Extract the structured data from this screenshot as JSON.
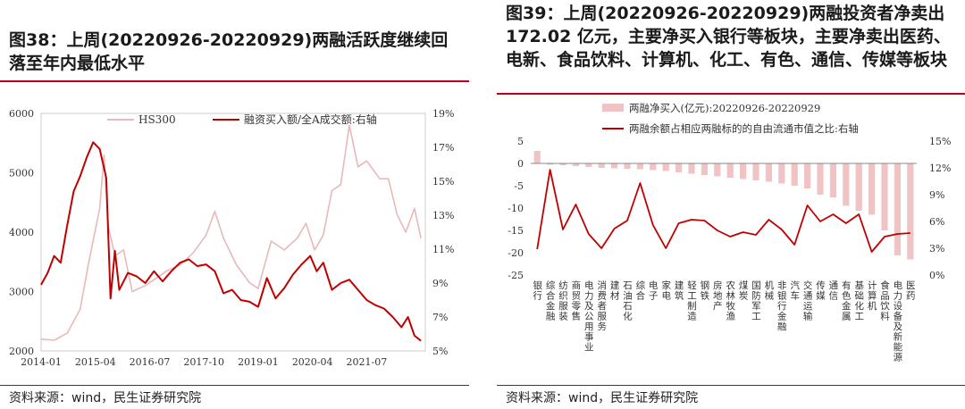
{
  "left": {
    "title": "图38：上周(20220926-20220929)两融活跃度继续回落至年内最低水平",
    "source": "资料来源：wind，民生证券研究院"
  },
  "right": {
    "title": "图39：上周(20220926-20220929)两融投资者净卖出 172.02 亿元，主要净买入银行等板块，主要净卖出医药、电新、食品饮料、计算机、化工、有色、通信、传媒等板块",
    "source": "资料来源：wind，民生证券研究院"
  },
  "chart_data": [
    {
      "type": "line",
      "legend_position": "top",
      "x_ticks": [
        "2014-01",
        "2015-04",
        "2016-07",
        "2017-10",
        "2019-01",
        "2020-04",
        "2021-07"
      ],
      "y_ticks_left": [
        "6000",
        "5000",
        "4000",
        "3000",
        "2000"
      ],
      "y_ticks_right": [
        "19%",
        "17%",
        "15%",
        "13%",
        "11%",
        "9%",
        "7%",
        "5%"
      ],
      "ylim_left": [
        2000,
        6000
      ],
      "ylim_right": [
        5,
        19
      ],
      "series": [
        {
          "name": "HS300",
          "axis": "left",
          "color": "#e9b8b8",
          "points": [
            [
              2014.0,
              2200
            ],
            [
              2014.3,
              2180
            ],
            [
              2014.6,
              2300
            ],
            [
              2014.9,
              2700
            ],
            [
              2015.1,
              3500
            ],
            [
              2015.35,
              4400
            ],
            [
              2015.45,
              5300
            ],
            [
              2015.55,
              4100
            ],
            [
              2015.7,
              3600
            ],
            [
              2015.9,
              3700
            ],
            [
              2016.1,
              3000
            ],
            [
              2016.4,
              3100
            ],
            [
              2016.6,
              3200
            ],
            [
              2016.9,
              3350
            ],
            [
              2017.2,
              3450
            ],
            [
              2017.5,
              3650
            ],
            [
              2017.8,
              3950
            ],
            [
              2018.0,
              4350
            ],
            [
              2018.2,
              3900
            ],
            [
              2018.5,
              3450
            ],
            [
              2018.8,
              3150
            ],
            [
              2019.0,
              3050
            ],
            [
              2019.3,
              3850
            ],
            [
              2019.6,
              3700
            ],
            [
              2019.9,
              3900
            ],
            [
              2020.1,
              4150
            ],
            [
              2020.3,
              3700
            ],
            [
              2020.5,
              3950
            ],
            [
              2020.7,
              4700
            ],
            [
              2020.9,
              4800
            ],
            [
              2021.1,
              5800
            ],
            [
              2021.3,
              5100
            ],
            [
              2021.5,
              5200
            ],
            [
              2021.8,
              4900
            ],
            [
              2022.0,
              4900
            ],
            [
              2022.2,
              4300
            ],
            [
              2022.4,
              4000
            ],
            [
              2022.6,
              4400
            ],
            [
              2022.75,
              3900
            ]
          ]
        },
        {
          "name": "融资买入额/全A成交额:右轴",
          "axis": "right",
          "color": "#c00000",
          "points": [
            [
              2014.0,
              8.9
            ],
            [
              2014.15,
              9.6
            ],
            [
              2014.3,
              10.6
            ],
            [
              2014.45,
              10.2
            ],
            [
              2014.6,
              12.4
            ],
            [
              2014.75,
              14.4
            ],
            [
              2014.9,
              15.3
            ],
            [
              2015.05,
              16.4
            ],
            [
              2015.2,
              17.3
            ],
            [
              2015.35,
              16.9
            ],
            [
              2015.5,
              15.2
            ],
            [
              2015.6,
              8.1
            ],
            [
              2015.7,
              10.9
            ],
            [
              2015.8,
              8.6
            ],
            [
              2016.0,
              9.6
            ],
            [
              2016.2,
              9.4
            ],
            [
              2016.4,
              9.0
            ],
            [
              2016.6,
              9.7
            ],
            [
              2016.8,
              9.1
            ],
            [
              2017.0,
              9.7
            ],
            [
              2017.2,
              10.2
            ],
            [
              2017.4,
              10.4
            ],
            [
              2017.6,
              10.0
            ],
            [
              2017.8,
              10.1
            ],
            [
              2018.0,
              9.7
            ],
            [
              2018.2,
              8.4
            ],
            [
              2018.4,
              8.6
            ],
            [
              2018.6,
              8.0
            ],
            [
              2018.8,
              7.9
            ],
            [
              2019.0,
              7.6
            ],
            [
              2019.2,
              9.3
            ],
            [
              2019.4,
              8.1
            ],
            [
              2019.6,
              8.7
            ],
            [
              2019.8,
              9.5
            ],
            [
              2020.0,
              10.1
            ],
            [
              2020.2,
              10.6
            ],
            [
              2020.35,
              9.7
            ],
            [
              2020.5,
              10.2
            ],
            [
              2020.7,
              8.6
            ],
            [
              2020.9,
              9.0
            ],
            [
              2021.1,
              9.2
            ],
            [
              2021.3,
              8.6
            ],
            [
              2021.5,
              8.0
            ],
            [
              2021.7,
              7.7
            ],
            [
              2021.9,
              7.5
            ],
            [
              2022.1,
              7.0
            ],
            [
              2022.3,
              6.4
            ],
            [
              2022.45,
              7.0
            ],
            [
              2022.6,
              5.9
            ],
            [
              2022.75,
              5.6
            ]
          ]
        }
      ]
    },
    {
      "type": "bar",
      "legend_position": "top",
      "categories": [
        "银行",
        "综合金融",
        "纺织服装",
        "商贸零售",
        "电力及公用事业",
        "消费者服务",
        "建材",
        "石油石化",
        "综合",
        "电子",
        "家电",
        "建筑",
        "轻工制造",
        "钢铁",
        "房地产",
        "农林牧渔",
        "煤炭",
        "国防军工",
        "机械",
        "非银行金融",
        "汽车",
        "交通运输",
        "传媒",
        "通信",
        "有色金属",
        "基础化工",
        "计算机",
        "食品饮料",
        "电力设备及新能源",
        "医药"
      ],
      "y_ticks_left": [
        "5",
        "0",
        "-5",
        "-10",
        "-15",
        "-20",
        "-25"
      ],
      "y_ticks_right": [
        "15%",
        "12%",
        "9%",
        "6%",
        "3%",
        "0%"
      ],
      "ylim_left": [
        -25,
        5
      ],
      "ylim_right": [
        0,
        15
      ],
      "series": [
        {
          "name": "两融净买入(亿元):20220926-20220929",
          "axis": "left",
          "color": "#f0c4c4",
          "values": [
            2.8,
            -0.3,
            -0.4,
            -0.6,
            -0.8,
            -1.0,
            -1.1,
            -1.2,
            -1.3,
            -1.5,
            -1.7,
            -2.0,
            -2.3,
            -2.6,
            -2.9,
            -3.2,
            -3.5,
            -3.8,
            -4.1,
            -4.5,
            -5.0,
            -5.6,
            -7.0,
            -7.6,
            -9.5,
            -10.6,
            -11.5,
            -15.0,
            -20.6,
            -21.5
          ]
        },
        {
          "name": "两融余额占相应两融标的的自由流通市值之比:右轴",
          "axis": "right",
          "color": "#c00000",
          "values": [
            2.9,
            11.8,
            5.1,
            7.9,
            4.6,
            3.0,
            5.2,
            6.1,
            10.3,
            5.6,
            3.0,
            5.8,
            6.2,
            6.1,
            5.0,
            4.3,
            4.8,
            4.5,
            6.2,
            5.1,
            3.4,
            7.8,
            6.0,
            6.8,
            5.8,
            6.8,
            2.6,
            4.3,
            4.6,
            4.7
          ]
        }
      ]
    }
  ]
}
